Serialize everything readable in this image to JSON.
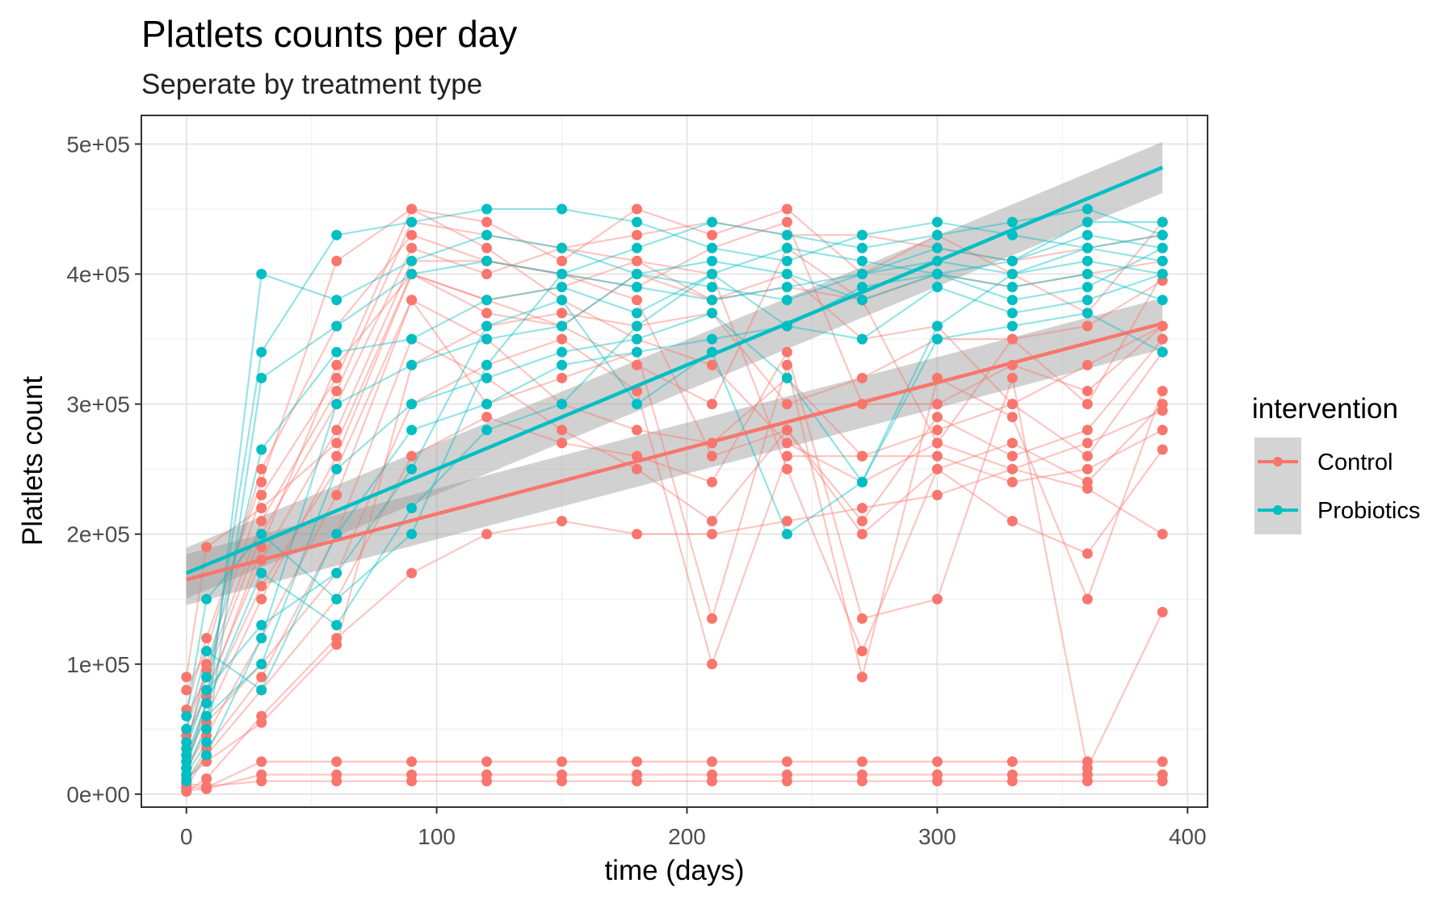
{
  "chart_data": {
    "type": "line",
    "title": "Platlets counts per day",
    "subtitle": "Seperate by treatment type",
    "xlabel": "time (days)",
    "ylabel": "Platlets count",
    "xlim": [
      -18,
      408
    ],
    "ylim": [
      -10000,
      522000
    ],
    "x_ticks": [
      0,
      100,
      200,
      300,
      400
    ],
    "x_tick_labels": [
      "0",
      "100",
      "200",
      "300",
      "400"
    ],
    "y_ticks": [
      0,
      100000,
      200000,
      300000,
      400000,
      500000
    ],
    "y_tick_labels": [
      "0e+00",
      "1e+05",
      "2e+05",
      "3e+05",
      "4e+05",
      "5e+05"
    ],
    "grid": true,
    "legend": {
      "title": "intervention",
      "position": "right"
    },
    "days": [
      0,
      8,
      30,
      60,
      90,
      120,
      150,
      180,
      210,
      240,
      270,
      300,
      330,
      360,
      390
    ],
    "series": [
      {
        "name": "Control",
        "color": "#F8766D",
        "trend": {
          "x": [
            0,
            390
          ],
          "y": [
            165000,
            362000
          ],
          "band_halfwidth": 14000
        },
        "patients": [
          [
            30000,
            60000,
            150000,
            260000,
            400000,
            380000,
            360000,
            330000,
            300000,
            420000,
            380000,
            270000,
            350000,
            300000,
            400000
          ],
          [
            20000,
            45000,
            120000,
            230000,
            380000,
            350000,
            300000,
            280000,
            270000,
            320000,
            260000,
            260000,
            240000,
            250000,
            280000
          ],
          [
            10000,
            35000,
            90000,
            200000,
            350000,
            320000,
            280000,
            250000,
            210000,
            280000,
            200000,
            250000,
            270000,
            240000,
            300000
          ],
          [
            60000,
            90000,
            200000,
            300000,
            420000,
            400000,
            420000,
            430000,
            440000,
            430000,
            430000,
            420000,
            410000,
            420000,
            430000
          ],
          [
            40000,
            80000,
            180000,
            280000,
            410000,
            410000,
            400000,
            390000,
            420000,
            440000,
            300000,
            300000,
            330000,
            310000,
            360000
          ],
          [
            15000,
            55000,
            100000,
            170000,
            300000,
            330000,
            350000,
            310000,
            100000,
            260000,
            260000,
            280000,
            300000,
            260000,
            340000
          ],
          [
            25000,
            70000,
            160000,
            250000,
            380000,
            300000,
            320000,
            340000,
            135000,
            330000,
            90000,
            320000,
            290000,
            150000,
            310000
          ],
          [
            50000,
            95000,
            210000,
            310000,
            440000,
            430000,
            420000,
            410000,
            400000,
            250000,
            110000,
            250000,
            210000,
            185000,
            265000
          ],
          [
            5000,
            30000,
            80000,
            150000,
            260000,
            290000,
            270000,
            260000,
            240000,
            340000,
            135000,
            150000,
            320000,
            20000,
            140000
          ],
          [
            35000,
            100000,
            230000,
            320000,
            450000,
            440000,
            410000,
            450000,
            430000,
            450000,
            400000,
            430000,
            400000,
            370000,
            440000
          ],
          [
            2000,
            12000,
            60000,
            120000,
            170000,
            200000,
            210000,
            200000,
            200000,
            210000,
            220000,
            230000,
            250000,
            235000,
            200000
          ],
          [
            80000,
            110000,
            250000,
            360000,
            430000,
            410000,
            400000,
            380000,
            260000,
            280000,
            210000,
            290000,
            260000,
            280000,
            350000
          ],
          [
            45000,
            75000,
            190000,
            330000,
            400000,
            370000,
            360000,
            400000,
            380000,
            400000,
            350000,
            360000,
            300000,
            330000,
            360000
          ],
          [
            12000,
            25000,
            55000,
            115000,
            330000,
            360000,
            370000,
            360000,
            370000,
            300000,
            320000,
            350000,
            350000,
            360000,
            395000
          ],
          [
            65000,
            120000,
            240000,
            410000,
            450000,
            420000,
            380000,
            350000,
            330000,
            270000,
            240000,
            270000,
            250000,
            270000,
            295000
          ],
          [
            90000,
            190000,
            220000,
            270000,
            400000,
            380000,
            390000,
            410000,
            380000,
            390000,
            380000,
            400000,
            390000,
            400000,
            410000
          ],
          [
            5000,
            5000,
            25000,
            25000,
            25000,
            25000,
            25000,
            25000,
            25000,
            25000,
            25000,
            25000,
            25000,
            25000,
            25000
          ],
          [
            3000,
            4000,
            15000,
            15000,
            15000,
            15000,
            15000,
            15000,
            15000,
            15000,
            15000,
            15000,
            15000,
            15000,
            15000
          ],
          [
            8000,
            6000,
            10000,
            10000,
            10000,
            10000,
            10000,
            10000,
            10000,
            10000,
            10000,
            10000,
            10000,
            10000,
            10000
          ]
        ]
      },
      {
        "name": "Probiotics",
        "color": "#00BFC4",
        "trend": {
          "x": [
            0,
            390
          ],
          "y": [
            170000,
            482000
          ],
          "band_halfwidth": 14000
        },
        "patients": [
          [
            20000,
            50000,
            400000,
            380000,
            410000,
            430000,
            420000,
            400000,
            390000,
            380000,
            400000,
            420000,
            410000,
            430000,
            420000
          ],
          [
            30000,
            70000,
            340000,
            430000,
            440000,
            450000,
            450000,
            440000,
            420000,
            410000,
            430000,
            440000,
            430000,
            420000,
            410000
          ],
          [
            15000,
            40000,
            320000,
            360000,
            400000,
            410000,
            400000,
            390000,
            380000,
            390000,
            400000,
            410000,
            400000,
            410000,
            400000
          ],
          [
            40000,
            90000,
            265000,
            340000,
            350000,
            380000,
            390000,
            370000,
            400000,
            360000,
            350000,
            390000,
            370000,
            380000,
            400000
          ],
          [
            10000,
            30000,
            120000,
            300000,
            330000,
            350000,
            360000,
            400000,
            410000,
            400000,
            380000,
            400000,
            380000,
            390000,
            420000
          ],
          [
            25000,
            60000,
            100000,
            250000,
            300000,
            320000,
            340000,
            350000,
            370000,
            320000,
            240000,
            360000,
            400000,
            420000,
            430000
          ],
          [
            50000,
            110000,
            80000,
            200000,
            280000,
            300000,
            330000,
            340000,
            350000,
            360000,
            390000,
            400000,
            410000,
            440000,
            440000
          ],
          [
            35000,
            80000,
            130000,
            170000,
            250000,
            360000,
            380000,
            300000,
            340000,
            200000,
            240000,
            350000,
            360000,
            370000,
            340000
          ],
          [
            60000,
            150000,
            200000,
            150000,
            200000,
            330000,
            400000,
            420000,
            440000,
            430000,
            420000,
            430000,
            440000,
            450000,
            430000
          ],
          [
            20000,
            70000,
            170000,
            130000,
            220000,
            280000,
            300000,
            360000,
            400000,
            420000,
            410000,
            400000,
            390000,
            400000,
            380000
          ]
        ]
      }
    ]
  }
}
